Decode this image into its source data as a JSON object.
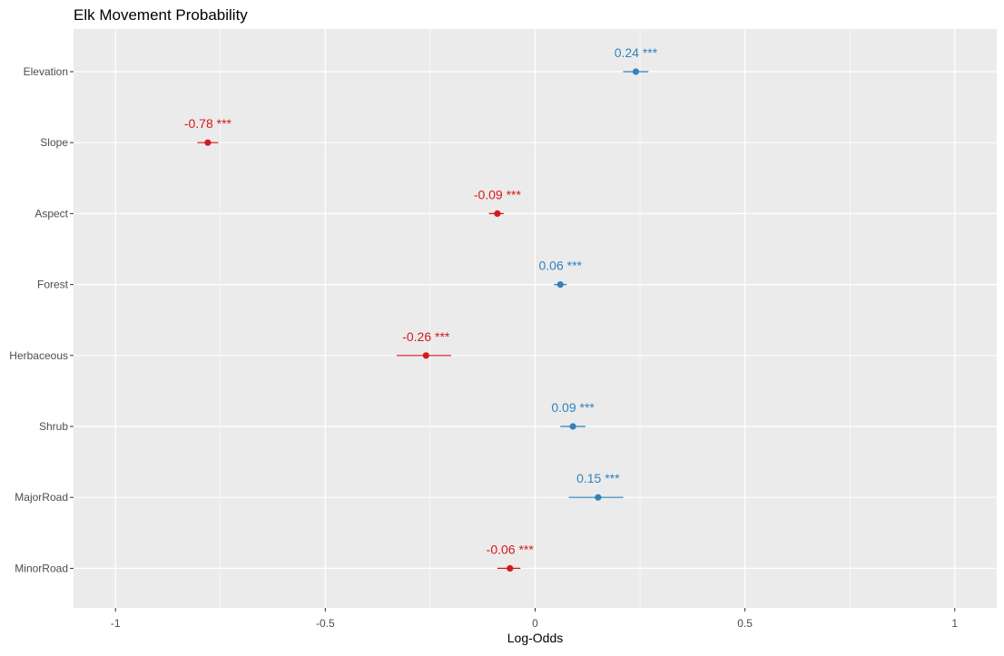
{
  "chart_data": {
    "type": "scatter",
    "title": "Elk Movement Probability",
    "xlabel": "Log-Odds",
    "ylabel": "",
    "xlim": [
      -1.1,
      1.1
    ],
    "x_ticks": [
      -1,
      -0.5,
      0,
      0.5,
      1
    ],
    "x_tick_labels": [
      "-1",
      "-0.5",
      "0",
      "0.5",
      "1"
    ],
    "grid": true,
    "legend": "none",
    "categories": [
      "Elevation",
      "Slope",
      "Aspect",
      "Forest",
      "Herbaceous",
      "Shrub",
      "MajorRoad",
      "MinorRoad"
    ],
    "points": [
      {
        "term": "Elevation",
        "estimate": 0.24,
        "lower": 0.21,
        "upper": 0.27,
        "label": "0.24 ***",
        "direction": "positive"
      },
      {
        "term": "Slope",
        "estimate": -0.78,
        "lower": -0.805,
        "upper": -0.755,
        "label": "-0.78 ***",
        "direction": "negative"
      },
      {
        "term": "Aspect",
        "estimate": -0.09,
        "lower": -0.11,
        "upper": -0.075,
        "label": "-0.09 ***",
        "direction": "negative"
      },
      {
        "term": "Forest",
        "estimate": 0.06,
        "lower": 0.045,
        "upper": 0.075,
        "label": "0.06 ***",
        "direction": "positive"
      },
      {
        "term": "Herbaceous",
        "estimate": -0.26,
        "lower": -0.33,
        "upper": -0.2,
        "label": "-0.26 ***",
        "direction": "negative"
      },
      {
        "term": "Shrub",
        "estimate": 0.09,
        "lower": 0.06,
        "upper": 0.12,
        "label": "0.09 ***",
        "direction": "positive"
      },
      {
        "term": "MajorRoad",
        "estimate": 0.15,
        "lower": 0.08,
        "upper": 0.21,
        "label": "0.15 ***",
        "direction": "positive"
      },
      {
        "term": "MinorRoad",
        "estimate": -0.06,
        "lower": -0.09,
        "upper": -0.035,
        "label": "-0.06 ***",
        "direction": "negative"
      }
    ],
    "colors": {
      "positive": "#3182bd",
      "negative": "#d7191c",
      "panel_background": "#ebebeb",
      "grid": "#ffffff"
    }
  }
}
